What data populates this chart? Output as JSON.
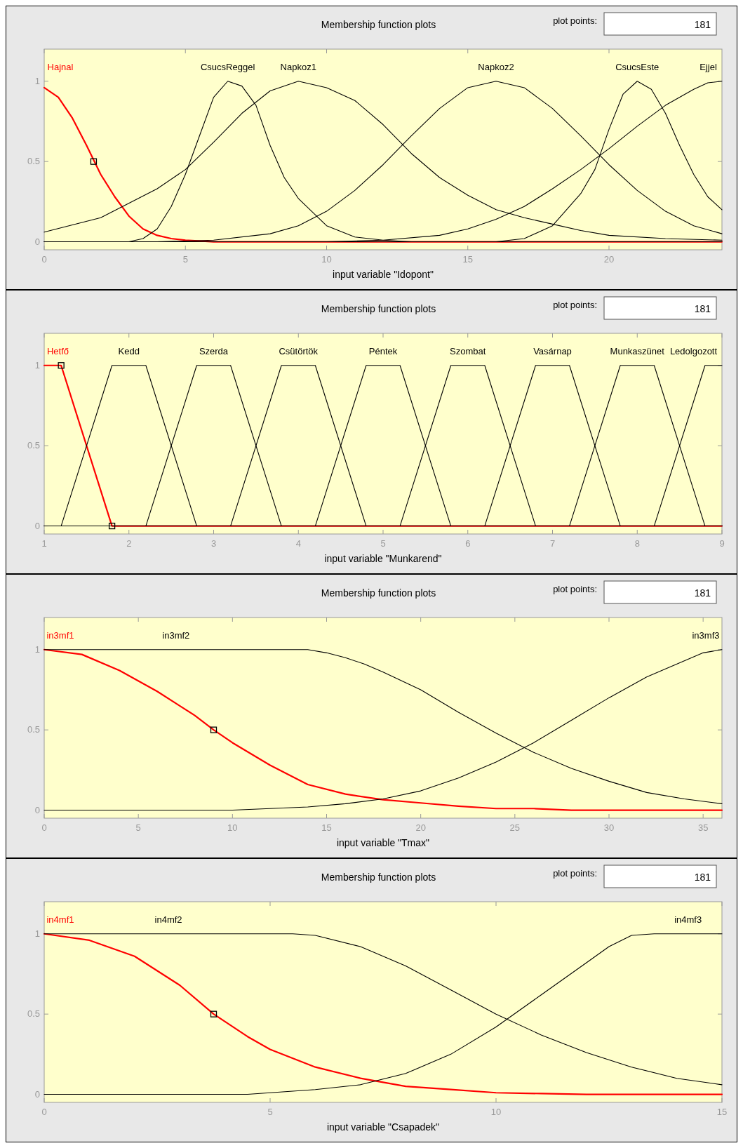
{
  "chart_data": [
    {
      "type": "line",
      "title": "Membership function plots",
      "xlabel": "input variable \"Idopont\"",
      "annotations": [
        "plot points:",
        "181"
      ],
      "xlim": [
        0,
        24
      ],
      "xticks": [
        0,
        5,
        10,
        15,
        20
      ],
      "ylim": [
        -0.05,
        1.2
      ],
      "yticks": [
        0,
        0.5,
        1
      ],
      "series": [
        {
          "name": "Hajnal",
          "color": "#ff0000",
          "x": [
            0,
            0.5,
            1,
            1.5,
            2,
            2.5,
            3,
            3.5,
            4,
            4.5,
            5,
            6,
            24
          ],
          "values": [
            0.96,
            0.9,
            0.77,
            0.6,
            0.42,
            0.28,
            0.16,
            0.08,
            0.04,
            0.02,
            0.01,
            0,
            0
          ]
        },
        {
          "name": "CsucsReggel",
          "color": "#000000",
          "x": [
            0,
            3,
            3.5,
            4,
            4.5,
            5,
            5.5,
            6,
            6.5,
            7,
            7.5,
            8,
            8.5,
            9,
            10,
            11,
            12,
            13,
            24
          ],
          "values": [
            0,
            0,
            0.02,
            0.08,
            0.22,
            0.42,
            0.66,
            0.9,
            1,
            0.97,
            0.85,
            0.6,
            0.4,
            0.27,
            0.1,
            0.03,
            0.01,
            0,
            0
          ]
        },
        {
          "name": "Napkoz1",
          "color": "#000000",
          "x": [
            0,
            2,
            4,
            5,
            6,
            7,
            8,
            9,
            10,
            11,
            12,
            13,
            14,
            15,
            16,
            17,
            18,
            19,
            20,
            22,
            24
          ],
          "values": [
            0.06,
            0.15,
            0.33,
            0.45,
            0.62,
            0.8,
            0.94,
            1,
            0.96,
            0.88,
            0.73,
            0.55,
            0.4,
            0.29,
            0.2,
            0.15,
            0.11,
            0.07,
            0.04,
            0.02,
            0.01
          ]
        },
        {
          "name": "Napkoz2",
          "color": "#000000",
          "x": [
            0,
            4,
            6,
            8,
            9,
            10,
            11,
            12,
            13,
            14,
            15,
            16,
            17,
            18,
            19,
            20,
            21,
            22,
            23,
            24
          ],
          "values": [
            0,
            0,
            0.01,
            0.05,
            0.1,
            0.19,
            0.32,
            0.48,
            0.66,
            0.83,
            0.96,
            1,
            0.96,
            0.83,
            0.66,
            0.48,
            0.32,
            0.19,
            0.1,
            0.05
          ]
        },
        {
          "name": "CsucsEste",
          "color": "#000000",
          "x": [
            0,
            16,
            17,
            18,
            19,
            19.5,
            20,
            20.5,
            21,
            21.5,
            22,
            22.5,
            23,
            23.5,
            24
          ],
          "values": [
            0,
            0,
            0.02,
            0.1,
            0.3,
            0.45,
            0.7,
            0.92,
            1,
            0.95,
            0.8,
            0.6,
            0.42,
            0.28,
            0.2
          ]
        },
        {
          "name": "Ejjel",
          "color": "#000000",
          "x": [
            0,
            10,
            12,
            14,
            15,
            16,
            17,
            18,
            19,
            20,
            21,
            22,
            23,
            23.5,
            24
          ],
          "values": [
            0,
            0,
            0.01,
            0.04,
            0.08,
            0.14,
            0.22,
            0.33,
            0.45,
            0.58,
            0.72,
            0.85,
            0.95,
            0.99,
            1
          ]
        },
        {
          "type": "scatter",
          "marker": "square",
          "color": "#000000",
          "x": [
            1.75
          ],
          "values": [
            0.5
          ]
        }
      ]
    },
    {
      "type": "line",
      "title": "Membership function plots",
      "xlabel": "input variable \"Munkarend\"",
      "annotations": [
        "plot points:",
        "181"
      ],
      "xlim": [
        1,
        9
      ],
      "xticks": [
        1,
        2,
        3,
        4,
        5,
        6,
        7,
        8,
        9
      ],
      "ylim": [
        -0.05,
        1.2
      ],
      "yticks": [
        0,
        0.5,
        1
      ],
      "series": [
        {
          "name": "Hetfő",
          "color": "#ff0000",
          "x": [
            1,
            1.2,
            1.8,
            9
          ],
          "values": [
            1,
            1,
            0,
            0
          ]
        },
        {
          "name": "Kedd",
          "color": "#000000",
          "x": [
            1,
            1.2,
            1.8,
            2.2,
            2.8,
            9
          ],
          "values": [
            0,
            0,
            1,
            1,
            0,
            0
          ]
        },
        {
          "name": "Szerda",
          "color": "#000000",
          "x": [
            1,
            2.2,
            2.8,
            3.2,
            3.8,
            9
          ],
          "values": [
            0,
            0,
            1,
            1,
            0,
            0
          ]
        },
        {
          "name": "Csütörtök",
          "color": "#000000",
          "x": [
            1,
            3.2,
            3.8,
            4.2,
            4.8,
            9
          ],
          "values": [
            0,
            0,
            1,
            1,
            0,
            0
          ]
        },
        {
          "name": "Péntek",
          "color": "#000000",
          "x": [
            1,
            4.2,
            4.8,
            5.2,
            5.8,
            9
          ],
          "values": [
            0,
            0,
            1,
            1,
            0,
            0
          ]
        },
        {
          "name": "Szombat",
          "color": "#000000",
          "x": [
            1,
            5.2,
            5.8,
            6.2,
            6.8,
            9
          ],
          "values": [
            0,
            0,
            1,
            1,
            0,
            0
          ]
        },
        {
          "name": "Vasárnap",
          "color": "#000000",
          "x": [
            1,
            6.2,
            6.8,
            7.2,
            7.8,
            9
          ],
          "values": [
            0,
            0,
            1,
            1,
            0,
            0
          ]
        },
        {
          "name": "Munkaszünet",
          "color": "#000000",
          "x": [
            1,
            7.2,
            7.8,
            8.2,
            8.8,
            9
          ],
          "values": [
            0,
            0,
            1,
            1,
            0,
            0
          ]
        },
        {
          "name": "Ledolgozott",
          "color": "#000000",
          "x": [
            1,
            8.2,
            8.8,
            9
          ],
          "values": [
            0,
            0,
            1,
            1
          ]
        },
        {
          "type": "scatter",
          "marker": "square",
          "color": "#000000",
          "x": [
            1.2,
            1.8
          ],
          "values": [
            1,
            0
          ]
        }
      ]
    },
    {
      "type": "line",
      "title": "Membership function plots",
      "xlabel": "input variable \"Tmax\"",
      "annotations": [
        "plot points:",
        "181"
      ],
      "xlim": [
        0,
        36
      ],
      "xticks": [
        0,
        5,
        10,
        15,
        20,
        25,
        30,
        35
      ],
      "ylim": [
        -0.05,
        1.2
      ],
      "yticks": [
        0,
        0.5,
        1
      ],
      "series": [
        {
          "name": "in3mf1",
          "color": "#ff0000",
          "x": [
            0,
            2,
            4,
            6,
            8,
            9,
            10,
            12,
            14,
            16,
            18,
            20,
            22,
            24,
            26,
            28,
            36
          ],
          "values": [
            1,
            0.97,
            0.87,
            0.74,
            0.59,
            0.5,
            0.42,
            0.28,
            0.16,
            0.1,
            0.065,
            0.045,
            0.025,
            0.01,
            0.01,
            0,
            0
          ]
        },
        {
          "name": "in3mf2",
          "color": "#000000",
          "x": [
            0,
            14,
            15,
            16,
            17,
            18,
            20,
            22,
            24,
            26,
            28,
            30,
            32,
            34,
            36
          ],
          "values": [
            1,
            1,
            0.98,
            0.95,
            0.91,
            0.86,
            0.75,
            0.61,
            0.48,
            0.36,
            0.26,
            0.18,
            0.11,
            0.07,
            0.04
          ]
        },
        {
          "name": "in3mf3",
          "color": "#000000",
          "x": [
            0,
            10,
            14,
            16,
            18,
            20,
            22,
            24,
            26,
            28,
            30,
            32,
            34,
            35,
            36
          ],
          "values": [
            0,
            0,
            0.02,
            0.04,
            0.07,
            0.12,
            0.2,
            0.3,
            0.42,
            0.56,
            0.7,
            0.83,
            0.93,
            0.98,
            1
          ]
        },
        {
          "type": "scatter",
          "marker": "square",
          "color": "#000000",
          "x": [
            9
          ],
          "values": [
            0.5
          ]
        }
      ]
    },
    {
      "type": "line",
      "title": "Membership function plots",
      "xlabel": "input variable \"Csapadek\"",
      "annotations": [
        "plot points:",
        "181"
      ],
      "xlim": [
        0,
        15
      ],
      "xticks": [
        0,
        5,
        10,
        15
      ],
      "ylim": [
        -0.05,
        1.2
      ],
      "yticks": [
        0,
        0.5,
        1
      ],
      "series": [
        {
          "name": "in4mf1",
          "color": "#ff0000",
          "x": [
            0,
            1,
            2,
            3,
            3.75,
            4.5,
            5,
            6,
            7,
            8,
            9,
            10,
            11,
            12,
            15
          ],
          "values": [
            1,
            0.96,
            0.86,
            0.68,
            0.5,
            0.36,
            0.28,
            0.17,
            0.1,
            0.05,
            0.03,
            0.01,
            0.005,
            0,
            0
          ]
        },
        {
          "name": "in4mf2",
          "color": "#000000",
          "x": [
            0,
            5.5,
            6,
            7,
            8,
            9,
            10,
            11,
            12,
            13,
            14,
            15
          ],
          "values": [
            1,
            1,
            0.99,
            0.92,
            0.8,
            0.65,
            0.5,
            0.37,
            0.26,
            0.17,
            0.1,
            0.06
          ]
        },
        {
          "name": "in4mf3",
          "color": "#000000",
          "x": [
            0,
            4.5,
            5,
            6,
            7,
            8,
            9,
            10,
            11,
            12,
            12.5,
            13,
            13.5,
            15
          ],
          "values": [
            0,
            0,
            0.01,
            0.03,
            0.06,
            0.13,
            0.25,
            0.42,
            0.62,
            0.82,
            0.92,
            0.99,
            1,
            1
          ]
        },
        {
          "type": "scatter",
          "marker": "square",
          "color": "#000000",
          "x": [
            3.75
          ],
          "values": [
            0.5
          ]
        }
      ]
    }
  ]
}
